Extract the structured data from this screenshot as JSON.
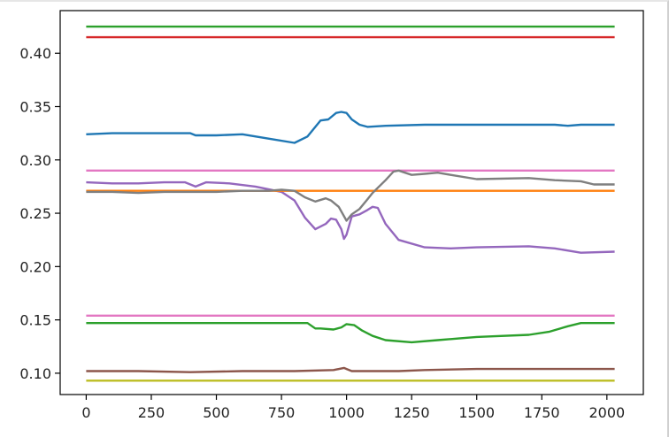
{
  "chart_data": {
    "type": "line",
    "title": "",
    "xlabel": "",
    "ylabel": "",
    "xlim": [
      -100,
      2140
    ],
    "ylim": [
      0.08,
      0.44
    ],
    "grid": false,
    "xticks": [
      0,
      250,
      500,
      750,
      1000,
      1250,
      1500,
      1750,
      2000
    ],
    "yticks": [
      0.1,
      0.15,
      0.2,
      0.25,
      0.3,
      0.35,
      0.4
    ],
    "xtick_labels": [
      "0",
      "250",
      "500",
      "750",
      "1000",
      "1250",
      "1500",
      "1750",
      "2000"
    ],
    "ytick_labels": [
      "0.10",
      "0.15",
      "0.20",
      "0.25",
      "0.30",
      "0.35",
      "0.40"
    ],
    "series": [
      {
        "color": "#2ca02c",
        "x": [
          0,
          2030
        ],
        "y": [
          0.425,
          0.425
        ]
      },
      {
        "color": "#d62728",
        "x": [
          0,
          2030
        ],
        "y": [
          0.415,
          0.415
        ]
      },
      {
        "color": "#1f77b4",
        "x": [
          0,
          100,
          200,
          300,
          400,
          420,
          500,
          600,
          700,
          800,
          850,
          900,
          930,
          960,
          980,
          1000,
          1020,
          1050,
          1080,
          1150,
          1300,
          1500,
          1700,
          1800,
          1850,
          1900,
          2030
        ],
        "y": [
          0.324,
          0.325,
          0.325,
          0.325,
          0.325,
          0.323,
          0.323,
          0.324,
          0.32,
          0.316,
          0.322,
          0.337,
          0.338,
          0.344,
          0.345,
          0.344,
          0.338,
          0.333,
          0.331,
          0.332,
          0.333,
          0.333,
          0.333,
          0.333,
          0.332,
          0.333,
          0.333
        ]
      },
      {
        "color": "#e377c2",
        "x": [
          0,
          2030
        ],
        "y": [
          0.29,
          0.29
        ]
      },
      {
        "color": "#9467bd",
        "x": [
          0,
          100,
          200,
          300,
          380,
          420,
          460,
          550,
          650,
          750,
          800,
          840,
          880,
          920,
          940,
          960,
          980,
          990,
          1000,
          1020,
          1050,
          1080,
          1100,
          1120,
          1150,
          1200,
          1300,
          1400,
          1500,
          1700,
          1800,
          1900,
          2030
        ],
        "y": [
          0.279,
          0.278,
          0.278,
          0.279,
          0.279,
          0.275,
          0.279,
          0.278,
          0.275,
          0.27,
          0.262,
          0.246,
          0.235,
          0.24,
          0.245,
          0.244,
          0.235,
          0.226,
          0.23,
          0.247,
          0.249,
          0.253,
          0.256,
          0.255,
          0.24,
          0.225,
          0.218,
          0.217,
          0.218,
          0.219,
          0.217,
          0.213,
          0.214
        ]
      },
      {
        "color": "#ff7f0e",
        "x": [
          0,
          2030
        ],
        "y": [
          0.271,
          0.271
        ]
      },
      {
        "color": "#7f7f7f",
        "x": [
          0,
          100,
          200,
          300,
          400,
          500,
          600,
          700,
          750,
          800,
          840,
          880,
          920,
          940,
          970,
          1000,
          1020,
          1050,
          1080,
          1100,
          1150,
          1180,
          1200,
          1250,
          1300,
          1350,
          1400,
          1500,
          1700,
          1800,
          1900,
          1950,
          2030
        ],
        "y": [
          0.27,
          0.27,
          0.269,
          0.27,
          0.27,
          0.27,
          0.271,
          0.271,
          0.272,
          0.271,
          0.265,
          0.261,
          0.264,
          0.262,
          0.256,
          0.243,
          0.249,
          0.254,
          0.263,
          0.269,
          0.281,
          0.289,
          0.29,
          0.286,
          0.287,
          0.288,
          0.286,
          0.282,
          0.283,
          0.281,
          0.28,
          0.277,
          0.277
        ]
      },
      {
        "color": "#e377c2",
        "x": [
          0,
          2030
        ],
        "y": [
          0.154,
          0.154
        ]
      },
      {
        "color": "#2ca02c",
        "x": [
          0,
          200,
          400,
          600,
          850,
          880,
          900,
          950,
          980,
          1000,
          1030,
          1060,
          1100,
          1150,
          1250,
          1350,
          1500,
          1700,
          1780,
          1850,
          1900,
          2030
        ],
        "y": [
          0.147,
          0.147,
          0.147,
          0.147,
          0.147,
          0.142,
          0.142,
          0.141,
          0.143,
          0.146,
          0.145,
          0.14,
          0.135,
          0.131,
          0.129,
          0.131,
          0.134,
          0.136,
          0.139,
          0.144,
          0.147,
          0.147
        ]
      },
      {
        "color": "#8c564b",
        "x": [
          0,
          200,
          400,
          600,
          800,
          950,
          990,
          1000,
          1020,
          1100,
          1200,
          1300,
          1500,
          1700,
          1900,
          2030
        ],
        "y": [
          0.102,
          0.102,
          0.101,
          0.102,
          0.102,
          0.103,
          0.105,
          0.104,
          0.102,
          0.102,
          0.102,
          0.103,
          0.104,
          0.104,
          0.104,
          0.104
        ]
      },
      {
        "color": "#bcbd22",
        "x": [
          0,
          2030
        ],
        "y": [
          0.093,
          0.093
        ]
      }
    ]
  }
}
